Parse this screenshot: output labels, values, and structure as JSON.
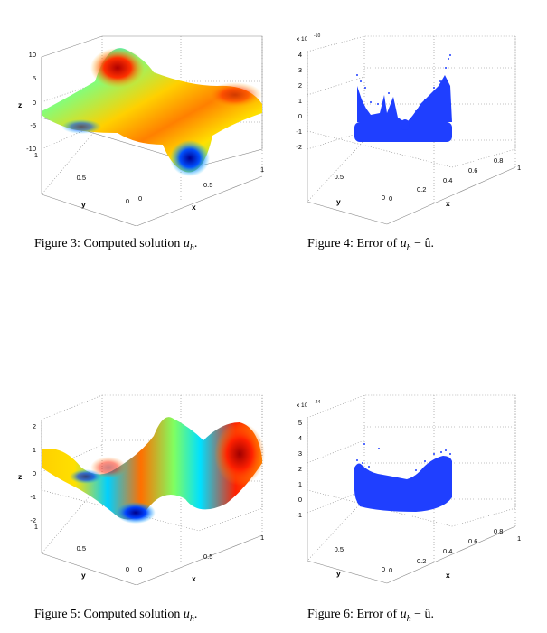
{
  "figures": [
    {
      "caption_prefix": "Figure 3: ",
      "caption_text": "Computed solution ",
      "caption_math": "u",
      "caption_sub": "h",
      "caption_tail": ".",
      "chart_data": {
        "type": "surface",
        "xlabel": "x",
        "ylabel": "y",
        "zlabel": "z",
        "xlim": [
          0,
          1
        ],
        "ylim": [
          0,
          1
        ],
        "zlim": [
          -10,
          10
        ],
        "x_ticks": [
          "0",
          "0.5",
          "1"
        ],
        "y_ticks": [
          "0",
          "0.5",
          "1"
        ],
        "z_ticks": [
          "10",
          "5",
          "0",
          "-5",
          "-10"
        ],
        "z_exponent": "",
        "colormap": "jet",
        "grid": true
      }
    },
    {
      "caption_prefix": "Figure 4: ",
      "caption_text": "Error of ",
      "caption_math": "u",
      "caption_sub": "h",
      "caption_tail": " − û.",
      "chart_data": {
        "type": "scatter3d",
        "xlabel": "x",
        "ylabel": "y",
        "zlabel": "",
        "xlim": [
          0,
          1
        ],
        "ylim": [
          0,
          1
        ],
        "zlim": [
          -2,
          4
        ],
        "x_ticks": [
          "0",
          "0.2",
          "0.4",
          "0.6",
          "0.8",
          "1"
        ],
        "y_ticks": [
          "0",
          "0.5",
          "1"
        ],
        "z_ticks": [
          "4",
          "3",
          "2",
          "1",
          "0",
          "-1",
          "-2"
        ],
        "z_exponent": "x 10",
        "z_exponent_power": "-10",
        "point_color": "#1f3fff",
        "grid": true
      }
    },
    {
      "caption_prefix": "Figure 5: ",
      "caption_text": "Computed solution ",
      "caption_math": "u",
      "caption_sub": "h",
      "caption_tail": ".",
      "chart_data": {
        "type": "surface",
        "xlabel": "x",
        "ylabel": "y",
        "zlabel": "z",
        "xlim": [
          0,
          1
        ],
        "ylim": [
          0,
          1
        ],
        "zlim": [
          -2,
          2
        ],
        "x_ticks": [
          "0",
          "0.5",
          "1"
        ],
        "y_ticks": [
          "0",
          "0.5",
          "1"
        ],
        "z_ticks": [
          "2",
          "1",
          "0",
          "-1",
          "-2"
        ],
        "z_exponent": "",
        "colormap": "jet",
        "grid": true
      }
    },
    {
      "caption_prefix": "Figure 6: ",
      "caption_text": "Error of ",
      "caption_math": "u",
      "caption_sub": "h",
      "caption_tail": " − û.",
      "chart_data": {
        "type": "scatter3d",
        "xlabel": "x",
        "ylabel": "y",
        "zlabel": "",
        "xlim": [
          0,
          1
        ],
        "ylim": [
          0,
          1
        ],
        "zlim": [
          -1,
          5
        ],
        "x_ticks": [
          "0",
          "0.2",
          "0.4",
          "0.6",
          "0.8",
          "1"
        ],
        "y_ticks": [
          "0",
          "0.5",
          "1"
        ],
        "z_ticks": [
          "5",
          "4",
          "3",
          "2",
          "1",
          "0",
          "-1"
        ],
        "z_exponent": "x 10",
        "z_exponent_power": "-24",
        "point_color": "#1f3fff",
        "grid": true
      }
    }
  ]
}
